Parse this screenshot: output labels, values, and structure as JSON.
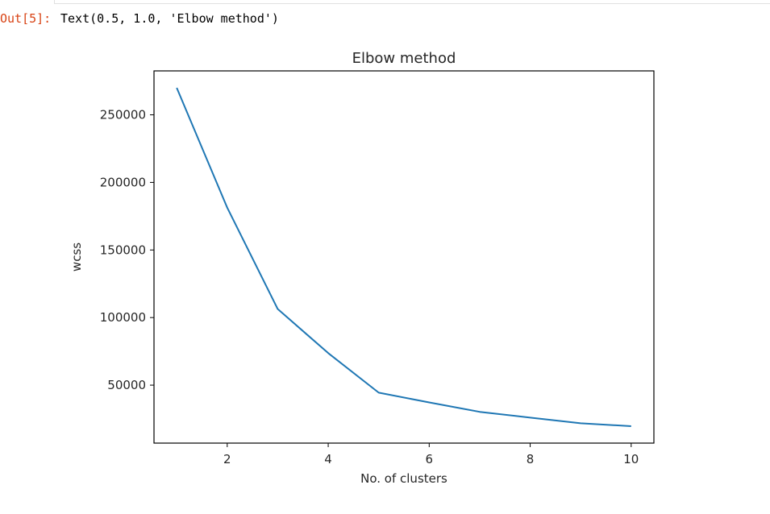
{
  "cell": {
    "prompt": "Out[5]:",
    "output_text": "Text(0.5, 1.0, 'Elbow method')"
  },
  "colors": {
    "prompt": "#d84315",
    "line": "#1f77b4"
  },
  "chart_data": {
    "type": "line",
    "title": "Elbow method",
    "xlabel": "No. of clusters",
    "ylabel": "wcss",
    "x": [
      1,
      2,
      3,
      4,
      5,
      6,
      7,
      8,
      9,
      10
    ],
    "series": [
      {
        "values": [
          269981,
          181363,
          106348,
          73679,
          44448,
          37233,
          30259,
          25981,
          21797,
          19637
        ]
      }
    ],
    "xlim": [
      0.55,
      10.45
    ],
    "ylim": [
      7120,
      282498
    ],
    "xticks": [
      2,
      4,
      6,
      8,
      10
    ],
    "xtick_labels": [
      "2",
      "4",
      "6",
      "8",
      "10"
    ],
    "yticks": [
      50000,
      100000,
      150000,
      200000,
      250000
    ],
    "ytick_labels": [
      "50000",
      "100000",
      "150000",
      "200000",
      "250000"
    ],
    "grid": false
  }
}
